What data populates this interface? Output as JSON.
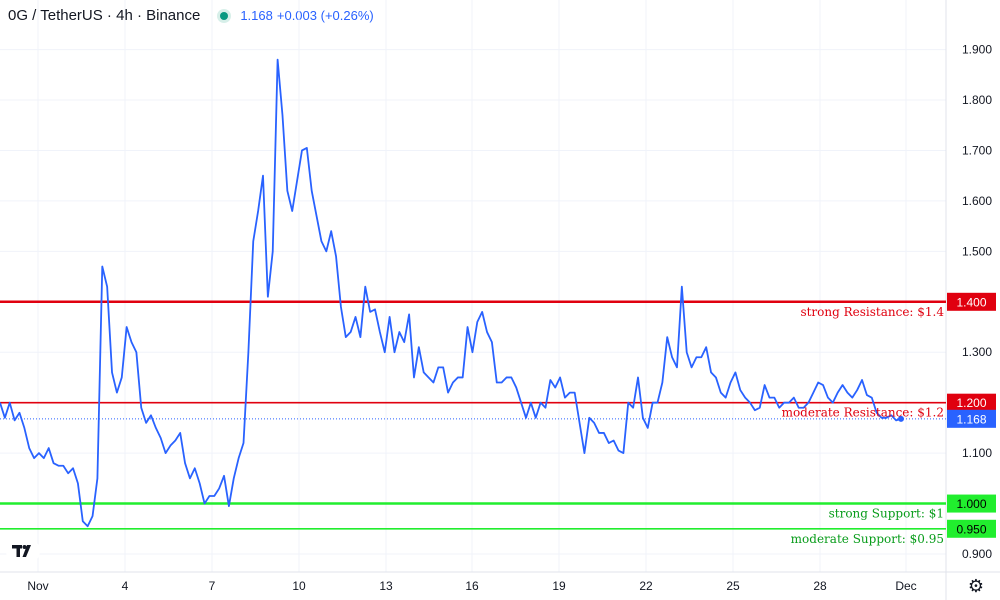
{
  "header": {
    "symbol": "0G / TetherUS · 4h · Binance",
    "last_price": "1.168",
    "change": "+0.003 (+0.26%)"
  },
  "icons": {
    "logo": "tradingview-logo-icon",
    "settings": "gear-icon"
  },
  "colors": {
    "line": "#2962ff",
    "resistance": "#e0000f",
    "support": "#21ee2e",
    "support_text": "#089c1a"
  },
  "chart_data": {
    "type": "line",
    "x_tick_labels": [
      "Nov",
      "4",
      "7",
      "10",
      "13",
      "16",
      "19",
      "22",
      "25",
      "28",
      "Dec"
    ],
    "y_ticks": [
      0.9,
      1.0,
      1.1,
      1.2,
      1.3,
      1.4,
      1.5,
      1.6,
      1.7,
      1.8,
      1.9
    ],
    "ylim": [
      0.85,
      1.95
    ],
    "last_price": 1.168,
    "series": [
      {
        "values": [
          1.2,
          1.17,
          1.2,
          1.165,
          1.18,
          1.15,
          1.11,
          1.09,
          1.1,
          1.09,
          1.11,
          1.08,
          1.075,
          1.075,
          1.06,
          1.07,
          1.04,
          0.965,
          0.955,
          0.975,
          1.05,
          1.47,
          1.43,
          1.26,
          1.22,
          1.25,
          1.35,
          1.32,
          1.3,
          1.19,
          1.16,
          1.175,
          1.15,
          1.13,
          1.1,
          1.115,
          1.125,
          1.14,
          1.08,
          1.05,
          1.07,
          1.04,
          1.0,
          1.015,
          1.015,
          1.03,
          1.055,
          0.995,
          1.05,
          1.09,
          1.12,
          1.3,
          1.52,
          1.58,
          1.65,
          1.41,
          1.5,
          1.88,
          1.77,
          1.62,
          1.58,
          1.64,
          1.7,
          1.705,
          1.62,
          1.57,
          1.52,
          1.5,
          1.54,
          1.49,
          1.39,
          1.33,
          1.34,
          1.37,
          1.33,
          1.43,
          1.38,
          1.385,
          1.34,
          1.3,
          1.37,
          1.3,
          1.34,
          1.32,
          1.375,
          1.25,
          1.31,
          1.26,
          1.25,
          1.24,
          1.27,
          1.27,
          1.22,
          1.24,
          1.25,
          1.25,
          1.35,
          1.3,
          1.36,
          1.38,
          1.34,
          1.32,
          1.24,
          1.24,
          1.25,
          1.25,
          1.23,
          1.2,
          1.17,
          1.2,
          1.17,
          1.2,
          1.19,
          1.245,
          1.23,
          1.25,
          1.21,
          1.22,
          1.22,
          1.16,
          1.1,
          1.17,
          1.16,
          1.14,
          1.14,
          1.12,
          1.125,
          1.105,
          1.1,
          1.2,
          1.19,
          1.25,
          1.17,
          1.15,
          1.2,
          1.2,
          1.24,
          1.33,
          1.29,
          1.27,
          1.43,
          1.3,
          1.27,
          1.29,
          1.29,
          1.31,
          1.26,
          1.25,
          1.22,
          1.21,
          1.24,
          1.26,
          1.225,
          1.21,
          1.2,
          1.185,
          1.19,
          1.235,
          1.21,
          1.21,
          1.19,
          1.2,
          1.2,
          1.21,
          1.19,
          1.19,
          1.2,
          1.22,
          1.24,
          1.235,
          1.21,
          1.2,
          1.22,
          1.235,
          1.22,
          1.21,
          1.225,
          1.245,
          1.215,
          1.21,
          1.18,
          1.17,
          1.17,
          1.175,
          1.165,
          1.168
        ]
      }
    ],
    "levels": [
      {
        "name": "resistance-strong",
        "value": 1.4,
        "axis_label": "1.400",
        "text": "strong Resistance: $1.4",
        "kind": "resistance",
        "width": 2.5
      },
      {
        "name": "resistance-moderate",
        "value": 1.2,
        "axis_label": "1.200",
        "text": "moderate Resistance: $1.2",
        "kind": "resistance",
        "width": 1.6
      },
      {
        "name": "support-strong",
        "value": 1.0,
        "axis_label": "1.000",
        "text": "strong Support: $1",
        "kind": "support",
        "width": 2.5
      },
      {
        "name": "support-moderate",
        "value": 0.95,
        "axis_label": "0.950",
        "text": "moderate Support: $0.95",
        "kind": "support",
        "width": 1.6
      }
    ],
    "last_price_label": "1.168"
  }
}
